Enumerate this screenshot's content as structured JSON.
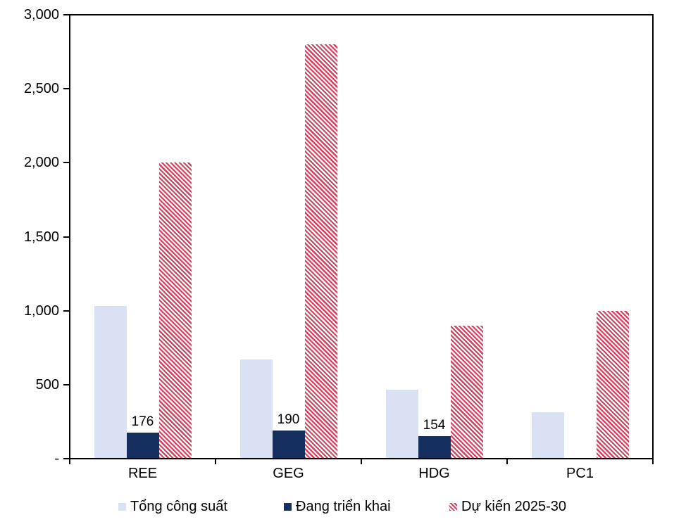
{
  "chart_data": {
    "type": "bar",
    "title": "",
    "xlabel": "",
    "ylabel": "",
    "categories": [
      "REE",
      "GEG",
      "HDG",
      "PC1"
    ],
    "series": [
      {
        "name": "Tổng công suất",
        "color": "#D9E1F2",
        "fill": "solid",
        "values": [
          1030,
          670,
          465,
          315
        ]
      },
      {
        "name": "Đang triển khai",
        "color": "#15305E",
        "fill": "solid",
        "values": [
          176,
          190,
          154,
          null
        ],
        "show_labels": true,
        "data_labels": [
          "176",
          "190",
          "154",
          ""
        ]
      },
      {
        "name": "Dự kiến 2025-30",
        "color": "#D5405C",
        "fill": "diagonal-hatch",
        "values": [
          2000,
          2800,
          900,
          1000
        ]
      }
    ],
    "ylim": [
      0,
      3000
    ],
    "ytick_interval": 500,
    "ytick_labels": [
      "-",
      "500",
      "1,000",
      "1,500",
      "2,000",
      "2,500",
      "3,000"
    ],
    "grid": false,
    "plot_border": true,
    "legend_position": "bottom",
    "axis_color": "#000000",
    "background_color": "#FFFFFF"
  },
  "legend": {
    "entries": [
      {
        "label": "Tổng công suất"
      },
      {
        "label": "Đang triển khai"
      },
      {
        "label": "Dự kiến 2025-30"
      }
    ]
  }
}
